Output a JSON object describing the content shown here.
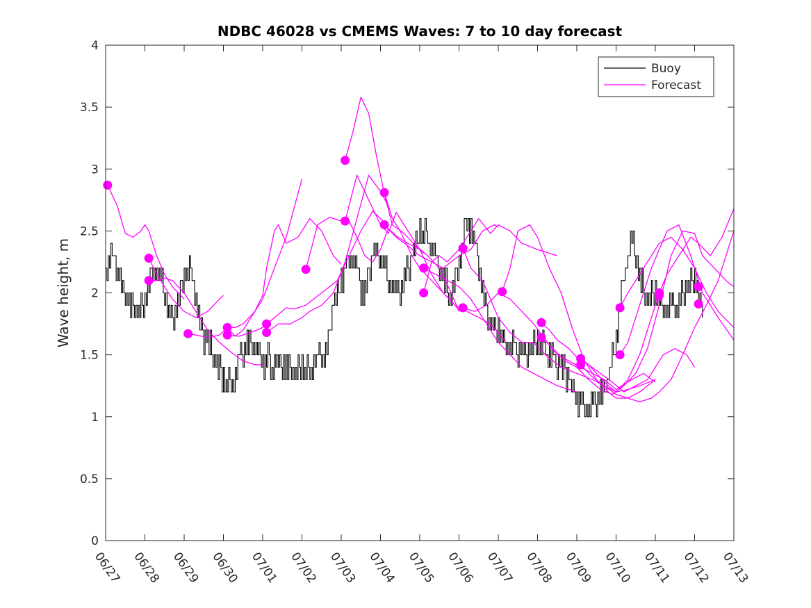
{
  "chart_data": {
    "type": "line",
    "title": "NDBC 46028 vs CMEMS Waves: 7 to 10 day forecast",
    "xlabel": "",
    "ylabel": "Wave height, m",
    "xlim": [
      0,
      16
    ],
    "ylim": [
      0,
      4
    ],
    "x_tick_labels": [
      "06/27",
      "06/28",
      "06/29",
      "06/30",
      "07/01",
      "07/02",
      "07/03",
      "07/04",
      "07/05",
      "07/06",
      "07/07",
      "07/08",
      "07/09",
      "07/10",
      "07/11",
      "07/12",
      "07/13"
    ],
    "y_ticks": [
      0,
      0.5,
      1,
      1.5,
      2,
      2.5,
      3,
      3.5,
      4
    ],
    "y_tick_labels": [
      "0",
      "0.5",
      "1",
      "1.5",
      "2",
      "2.5",
      "3",
      "3.5",
      "4"
    ],
    "legend": {
      "position": "top-right",
      "entries": [
        {
          "label": "Buoy",
          "color": "#000000"
        },
        {
          "label": "Forecast",
          "color": "#ff00ff"
        }
      ]
    },
    "colors": {
      "buoy": "#000000",
      "forecast": "#ff00ff"
    },
    "buoy": {
      "name": "Buoy",
      "x": [
        0,
        0.2,
        0.4,
        0.6,
        0.8,
        1.0,
        1.2,
        1.4,
        1.6,
        1.8,
        2.0,
        2.2,
        2.4,
        2.6,
        2.8,
        3.0,
        3.2,
        3.4,
        3.6,
        3.8,
        4.0,
        4.2,
        4.4,
        4.6,
        4.8,
        5.0,
        5.2,
        5.4,
        5.6,
        5.8,
        6.0,
        6.2,
        6.4,
        6.6,
        6.8,
        7.0,
        7.2,
        7.4,
        7.6,
        7.8,
        8.0,
        8.2,
        8.4,
        8.6,
        8.8,
        9.0,
        9.2,
        9.4,
        9.6,
        9.8,
        10.0,
        10.2,
        10.4,
        10.6,
        10.8,
        11.0,
        11.2,
        11.4,
        11.6,
        11.8,
        12.0,
        12.2,
        12.4,
        12.6,
        12.8,
        13.0,
        13.2,
        13.4,
        13.6,
        13.8,
        14.0,
        14.2,
        14.4,
        14.6,
        14.8,
        15.0,
        15.2
      ],
      "y": [
        2.2,
        2.35,
        2.0,
        1.9,
        1.85,
        1.95,
        2.2,
        2.1,
        1.8,
        1.85,
        2.15,
        2.2,
        1.7,
        1.6,
        1.45,
        1.3,
        1.25,
        1.45,
        1.6,
        1.55,
        1.45,
        1.45,
        1.4,
        1.4,
        1.35,
        1.4,
        1.35,
        1.45,
        1.5,
        1.9,
        2.1,
        2.3,
        2.15,
        1.95,
        2.35,
        2.3,
        2.1,
        2.0,
        2.1,
        2.3,
        2.5,
        2.45,
        2.25,
        2.1,
        1.95,
        2.3,
        2.6,
        2.4,
        2.0,
        1.75,
        1.7,
        1.55,
        1.55,
        1.5,
        1.5,
        1.6,
        1.55,
        1.45,
        1.4,
        1.3,
        1.15,
        1.1,
        1.05,
        1.15,
        1.3,
        1.6,
        2.2,
        2.4,
        2.1,
        1.95,
        2.0,
        1.9,
        1.85,
        1.9,
        2.05,
        2.1,
        1.85
      ]
    },
    "forecasts": [
      {
        "name": "Forecast",
        "x": [
          0.05,
          0.3,
          0.5,
          0.7,
          0.9,
          1.0,
          1.1,
          1.3,
          1.5,
          1.7,
          2.0
        ],
        "y": [
          2.87,
          2.7,
          2.48,
          2.45,
          2.5,
          2.55,
          2.5,
          2.3,
          2.15,
          2.05,
          1.95
        ]
      },
      {
        "name": "Forecast",
        "x": [
          1.1,
          1.3,
          1.5,
          1.7,
          2.0,
          2.3,
          2.6,
          2.9,
          3.0
        ],
        "y": [
          2.28,
          2.15,
          2.05,
          1.95,
          1.85,
          1.8,
          1.85,
          1.95,
          1.98
        ]
      },
      {
        "name": "Forecast",
        "x": [
          1.1,
          1.3,
          1.5,
          1.7,
          2.0,
          2.3,
          2.6,
          2.9,
          3.2,
          3.5,
          3.8,
          4.0
        ],
        "y": [
          2.1,
          2.1,
          2.12,
          2.1,
          2.0,
          1.85,
          1.7,
          1.6,
          1.52,
          1.45,
          1.42,
          1.42
        ]
      },
      {
        "name": "Forecast",
        "x": [
          2.1,
          2.3,
          2.6,
          2.9,
          3.1,
          3.3,
          3.5,
          3.7,
          4.0,
          4.3,
          4.6,
          5.0
        ],
        "y": [
          1.67,
          1.66,
          1.64,
          1.66,
          1.72,
          1.65,
          1.7,
          1.8,
          1.95,
          2.2,
          2.45,
          2.92
        ]
      },
      {
        "name": "Forecast",
        "x": [
          3.1,
          3.3,
          3.5,
          3.8,
          4.0,
          4.1,
          4.3,
          4.4,
          4.6,
          4.9,
          5.2,
          5.5,
          5.8,
          6.0
        ],
        "y": [
          1.72,
          1.72,
          1.75,
          1.85,
          1.98,
          2.2,
          2.5,
          2.55,
          2.4,
          2.45,
          2.6,
          2.5,
          2.3,
          2.23
        ]
      },
      {
        "name": "Forecast",
        "x": [
          3.1,
          3.4,
          3.7,
          4.0,
          4.3,
          4.6,
          4.8,
          5.1,
          5.5,
          5.9,
          6.2,
          6.5,
          6.8,
          7.0,
          7.2
        ],
        "y": [
          1.66,
          1.65,
          1.68,
          1.72,
          1.8,
          1.88,
          1.87,
          1.9,
          2.0,
          2.1,
          2.3,
          2.5,
          2.66,
          2.6,
          2.55
        ]
      },
      {
        "name": "Forecast",
        "x": [
          4.1,
          4.4,
          4.7,
          5.0,
          5.2,
          5.5,
          5.8,
          6.1,
          6.4,
          6.7,
          7.0,
          7.2
        ],
        "y": [
          1.68,
          1.75,
          1.75,
          1.8,
          1.85,
          1.9,
          2.0,
          2.25,
          2.6,
          2.95,
          2.82,
          2.7
        ]
      },
      {
        "name": "Forecast",
        "x": [
          5.1,
          5.4,
          5.7,
          6.0,
          6.2,
          6.4,
          6.6,
          6.8,
          7.0,
          7.2,
          7.4,
          7.7,
          8.0,
          8.1
        ],
        "y": [
          2.19,
          2.55,
          2.61,
          2.58,
          2.58,
          2.45,
          2.3,
          2.25,
          2.35,
          2.52,
          2.46,
          2.4,
          2.35,
          2.32
        ]
      },
      {
        "name": "Forecast",
        "x": [
          6.1,
          6.3,
          6.5,
          6.7,
          6.9,
          7.1,
          7.3,
          7.6,
          7.9,
          8.2,
          8.5,
          8.8,
          9.0
        ],
        "y": [
          3.07,
          3.3,
          3.58,
          3.45,
          3.1,
          2.8,
          2.55,
          2.48,
          2.38,
          2.3,
          2.2,
          2.0,
          1.85
        ]
      },
      {
        "name": "Forecast",
        "x": [
          6.1,
          6.4,
          6.7,
          7.0,
          7.2,
          7.4,
          7.7,
          8.0,
          8.3,
          8.6,
          8.9,
          9.0
        ],
        "y": [
          2.58,
          2.95,
          2.75,
          2.55,
          2.48,
          2.65,
          2.5,
          2.35,
          2.15,
          2.0,
          1.9,
          1.86
        ]
      },
      {
        "name": "Forecast",
        "x": [
          7.1,
          7.3,
          7.5,
          7.8,
          8.0,
          8.3,
          8.6,
          8.9,
          9.2,
          9.5,
          9.8,
          10.0,
          10.2
        ],
        "y": [
          2.81,
          2.6,
          2.5,
          2.3,
          2.2,
          2.1,
          2.0,
          1.9,
          1.85,
          1.8,
          1.75,
          1.68,
          1.6
        ]
      },
      {
        "name": "Forecast",
        "x": [
          7.1,
          7.4,
          7.7,
          8.0,
          8.3,
          8.6,
          9.0,
          9.3,
          9.6,
          9.9,
          10.0
        ],
        "y": [
          2.55,
          2.45,
          2.38,
          2.3,
          2.25,
          2.2,
          2.3,
          2.35,
          2.5,
          2.55,
          2.53
        ]
      },
      {
        "name": "Forecast",
        "x": [
          8.1,
          8.4,
          8.7,
          9.0,
          9.3,
          9.6,
          10.0,
          10.3,
          10.6,
          10.9,
          11.2,
          11.5,
          11.8,
          12.0
        ],
        "y": [
          2.2,
          2.15,
          2.1,
          2.05,
          1.95,
          1.8,
          1.6,
          1.5,
          1.4,
          1.35,
          1.3,
          1.25,
          1.22,
          1.2
        ]
      },
      {
        "name": "Forecast",
        "x": [
          8.1,
          8.3,
          8.5,
          8.7,
          9.0,
          9.2,
          9.5,
          9.8,
          10.0,
          10.3,
          10.6,
          11.0,
          11.5
        ],
        "y": [
          2.0,
          2.25,
          2.3,
          2.25,
          2.35,
          2.45,
          2.6,
          2.48,
          2.55,
          2.5,
          2.4,
          2.35,
          2.3
        ]
      },
      {
        "name": "Forecast",
        "x": [
          9.1,
          9.4,
          9.7,
          10.0,
          10.3,
          10.6,
          10.9,
          11.2,
          11.5,
          11.8,
          12.1,
          12.4,
          12.7,
          13.0,
          13.4,
          13.7,
          14.0
        ],
        "y": [
          1.88,
          1.85,
          1.9,
          2.0,
          1.95,
          1.85,
          1.75,
          1.62,
          1.5,
          1.45,
          1.4,
          1.35,
          1.3,
          1.22,
          1.3,
          1.35,
          1.28
        ]
      },
      {
        "name": "Forecast",
        "x": [
          9.1,
          9.3,
          9.6,
          10.0,
          10.3,
          10.6,
          10.9,
          11.2,
          11.6,
          12.0,
          12.4,
          12.7,
          13.0,
          13.3,
          13.6,
          14.0
        ],
        "y": [
          2.36,
          2.2,
          2.1,
          1.8,
          1.68,
          1.6,
          1.6,
          1.5,
          1.4,
          1.35,
          1.3,
          1.25,
          1.2,
          1.22,
          1.25,
          1.3
        ]
      },
      {
        "name": "Forecast",
        "x": [
          10.1,
          10.3,
          10.5,
          10.8,
          11.0,
          11.3,
          11.6,
          11.9,
          12.2,
          12.5,
          12.8,
          13.0,
          13.3,
          13.6,
          14.0
        ],
        "y": [
          2.01,
          2.2,
          2.5,
          2.55,
          2.45,
          2.2,
          2.0,
          1.7,
          1.45,
          1.3,
          1.2,
          1.15,
          1.15,
          1.2,
          1.3
        ]
      },
      {
        "name": "Forecast",
        "x": [
          11.1,
          11.3,
          11.5,
          11.8,
          12.0,
          12.3,
          12.6,
          12.9,
          13.2,
          13.5,
          13.8,
          14.0,
          14.2,
          14.5,
          14.8,
          15.0
        ],
        "y": [
          1.76,
          1.7,
          1.62,
          1.55,
          1.48,
          1.42,
          1.35,
          1.28,
          1.2,
          1.25,
          1.3,
          1.4,
          1.5,
          1.55,
          1.5,
          1.4
        ]
      },
      {
        "name": "Forecast",
        "x": [
          11.1,
          11.4,
          11.7,
          12.0,
          12.3,
          12.6,
          12.9,
          13.2,
          13.5,
          13.8,
          14.1,
          14.4,
          14.7,
          15.0,
          15.2,
          15.5,
          15.8,
          16.0
        ],
        "y": [
          1.64,
          1.55,
          1.45,
          1.4,
          1.3,
          1.22,
          1.18,
          1.25,
          1.35,
          1.55,
          1.9,
          2.3,
          2.5,
          2.48,
          2.3,
          2.2,
          2.1,
          2.05
        ]
      },
      {
        "name": "Forecast",
        "x": [
          12.1,
          12.3,
          12.5,
          12.8,
          13.0,
          13.3,
          13.6,
          13.9,
          14.1,
          14.3,
          14.6,
          14.9,
          15.1,
          15.4,
          15.7,
          16.0
        ],
        "y": [
          1.47,
          1.42,
          1.35,
          1.25,
          1.2,
          1.3,
          1.5,
          1.8,
          2.0,
          2.15,
          2.3,
          2.45,
          2.4,
          2.3,
          2.45,
          2.68
        ]
      },
      {
        "name": "Forecast",
        "x": [
          12.1,
          12.4,
          12.7,
          13.0,
          13.3,
          13.6,
          13.9,
          14.1,
          14.4,
          14.7,
          15.0,
          15.3,
          15.6,
          16.0
        ],
        "y": [
          1.42,
          1.32,
          1.25,
          1.18,
          1.15,
          1.12,
          1.15,
          1.2,
          1.3,
          1.5,
          1.72,
          1.9,
          2.1,
          2.5
        ]
      },
      {
        "name": "Forecast",
        "x": [
          13.1,
          13.3,
          13.6,
          13.9,
          14.1,
          14.4,
          14.7,
          15.0,
          15.3,
          15.6,
          16.0
        ],
        "y": [
          1.88,
          2.0,
          2.15,
          2.3,
          2.4,
          2.45,
          2.35,
          2.2,
          2.0,
          1.85,
          1.72
        ]
      },
      {
        "name": "Forecast",
        "x": [
          13.1,
          13.3,
          13.6,
          13.9,
          14.1,
          14.3,
          14.6,
          14.9,
          15.2,
          15.6,
          16.0
        ],
        "y": [
          1.5,
          1.6,
          1.9,
          2.2,
          2.35,
          2.5,
          2.55,
          2.3,
          2.0,
          1.8,
          1.62
        ]
      }
    ],
    "forecast_start_points": {
      "x": [
        0.05,
        1.1,
        1.1,
        2.1,
        3.1,
        3.1,
        4.1,
        4.1,
        5.1,
        6.1,
        6.1,
        7.1,
        7.1,
        8.1,
        8.1,
        9.1,
        9.1,
        10.1,
        11.1,
        11.1,
        12.1,
        12.1,
        13.1,
        13.1,
        14.1,
        14.1,
        15.1,
        15.1
      ],
      "y": [
        2.87,
        2.28,
        2.1,
        1.67,
        1.72,
        1.66,
        1.75,
        1.68,
        2.19,
        3.07,
        2.58,
        2.81,
        2.55,
        2.2,
        2.0,
        2.36,
        1.88,
        2.01,
        1.76,
        1.64,
        1.47,
        1.42,
        1.88,
        1.5,
        2.0,
        1.98,
        2.05,
        1.91
      ]
    }
  }
}
